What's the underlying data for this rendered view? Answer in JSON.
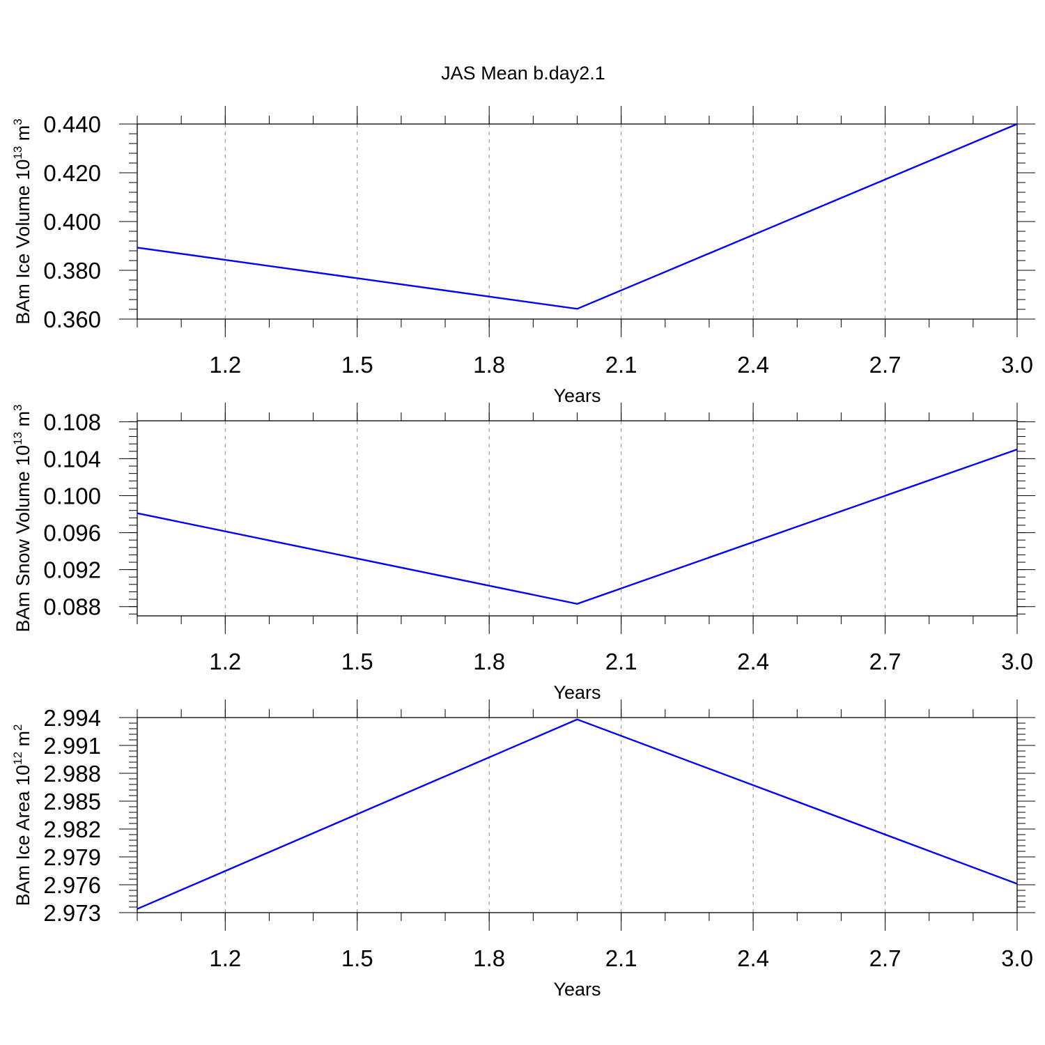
{
  "chart_data": [
    {
      "type": "line",
      "title": "JAS Mean b.day2.1",
      "xlabel": "Years",
      "ylabel": "BAm Ice Volume 10",
      "ylabel_exp": "13",
      "ylabel_unit": " m",
      "ylabel_unit_exp": "3",
      "x": [
        1,
        2,
        3
      ],
      "values": [
        0.3893,
        0.3642,
        0.44
      ],
      "xlim": [
        1,
        3
      ],
      "ylim": [
        0.36,
        0.44
      ],
      "xticks": [
        "1.2",
        "1.5",
        "1.8",
        "2.1",
        "2.4",
        "2.7",
        "3.0"
      ],
      "xtick_values": [
        1.2,
        1.5,
        1.8,
        2.1,
        2.4,
        2.7,
        3.0
      ],
      "yticks": [
        "0.360",
        "0.380",
        "0.400",
        "0.420",
        "0.440"
      ],
      "ytick_values": [
        0.36,
        0.38,
        0.4,
        0.42,
        0.44
      ],
      "y_minor_step": 0.004,
      "x_minor_step": 0.1,
      "grid": "dashed vertical at major x ticks",
      "color": "#0000ff"
    },
    {
      "type": "line",
      "xlabel": "Years",
      "ylabel": "BAm Snow Volume 10",
      "ylabel_exp": "13",
      "ylabel_unit": " m",
      "ylabel_unit_exp": "3",
      "x": [
        1,
        2,
        3
      ],
      "values": [
        0.0981,
        0.0883,
        0.105
      ],
      "xlim": [
        1,
        3
      ],
      "ylim": [
        0.087,
        0.1081
      ],
      "xticks": [
        "1.2",
        "1.5",
        "1.8",
        "2.1",
        "2.4",
        "2.7",
        "3.0"
      ],
      "xtick_values": [
        1.2,
        1.5,
        1.8,
        2.1,
        2.4,
        2.7,
        3.0
      ],
      "yticks": [
        "0.088",
        "0.092",
        "0.096",
        "0.100",
        "0.104",
        "0.108"
      ],
      "ytick_values": [
        0.088,
        0.092,
        0.096,
        0.1,
        0.104,
        0.108
      ],
      "y_minor_step": 0.0008,
      "x_minor_step": 0.1,
      "grid": "dashed vertical at major x ticks",
      "color": "#0000ff"
    },
    {
      "type": "line",
      "xlabel": "Years",
      "ylabel": "BAm Ice Area 10",
      "ylabel_exp": "12",
      "ylabel_unit": " m",
      "ylabel_unit_exp": "2",
      "x": [
        1,
        2,
        3
      ],
      "values": [
        2.9734,
        2.9938,
        2.9761
      ],
      "xlim": [
        1,
        3
      ],
      "ylim": [
        2.973,
        2.994
      ],
      "xticks": [
        "1.2",
        "1.5",
        "1.8",
        "2.1",
        "2.4",
        "2.7",
        "3.0"
      ],
      "xtick_values": [
        1.2,
        1.5,
        1.8,
        2.1,
        2.4,
        2.7,
        3.0
      ],
      "yticks": [
        "2.973",
        "2.976",
        "2.979",
        "2.982",
        "2.985",
        "2.988",
        "2.991",
        "2.994"
      ],
      "ytick_values": [
        2.973,
        2.976,
        2.979,
        2.982,
        2.985,
        2.988,
        2.991,
        2.994
      ],
      "y_minor_step": 0.0006,
      "x_minor_step": 0.1,
      "grid": "dashed vertical at major x ticks",
      "color": "#0000ff"
    }
  ]
}
